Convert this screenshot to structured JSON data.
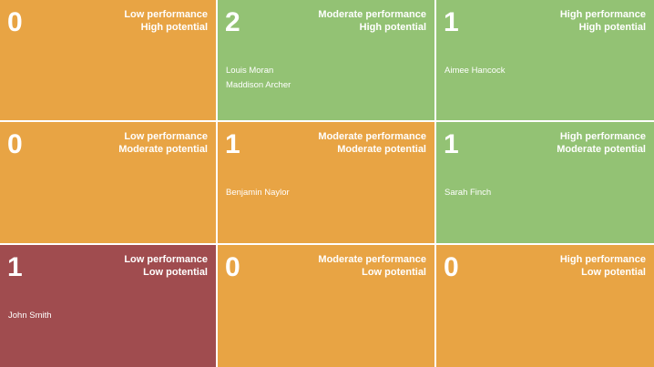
{
  "colors": {
    "orange": "#e8a444",
    "green": "#93c274",
    "red": "#a04c4f"
  },
  "cells": [
    {
      "count": "0",
      "performance": "Low performance",
      "potential": "High potential",
      "color": "#e8a444",
      "people": []
    },
    {
      "count": "2",
      "performance": "Moderate performance",
      "potential": "High potential",
      "color": "#93c274",
      "people": [
        "Louis Moran",
        "Maddison Archer"
      ]
    },
    {
      "count": "1",
      "performance": "High performance",
      "potential": "High potential",
      "color": "#93c274",
      "people": [
        "Aimee Hancock"
      ]
    },
    {
      "count": "0",
      "performance": "Low performance",
      "potential": "Moderate potential",
      "color": "#e8a444",
      "people": []
    },
    {
      "count": "1",
      "performance": "Moderate performance",
      "potential": "Moderate potential",
      "color": "#e8a444",
      "people": [
        "Benjamin Naylor"
      ]
    },
    {
      "count": "1",
      "performance": "High performance",
      "potential": "Moderate potential",
      "color": "#93c274",
      "people": [
        "Sarah Finch"
      ]
    },
    {
      "count": "1",
      "performance": "Low performance",
      "potential": "Low potential",
      "color": "#a04c4f",
      "people": [
        "John Smith"
      ]
    },
    {
      "count": "0",
      "performance": "Moderate performance",
      "potential": "Low potential",
      "color": "#e8a444",
      "people": []
    },
    {
      "count": "0",
      "performance": "High performance",
      "potential": "Low potential",
      "color": "#e8a444",
      "people": []
    }
  ]
}
